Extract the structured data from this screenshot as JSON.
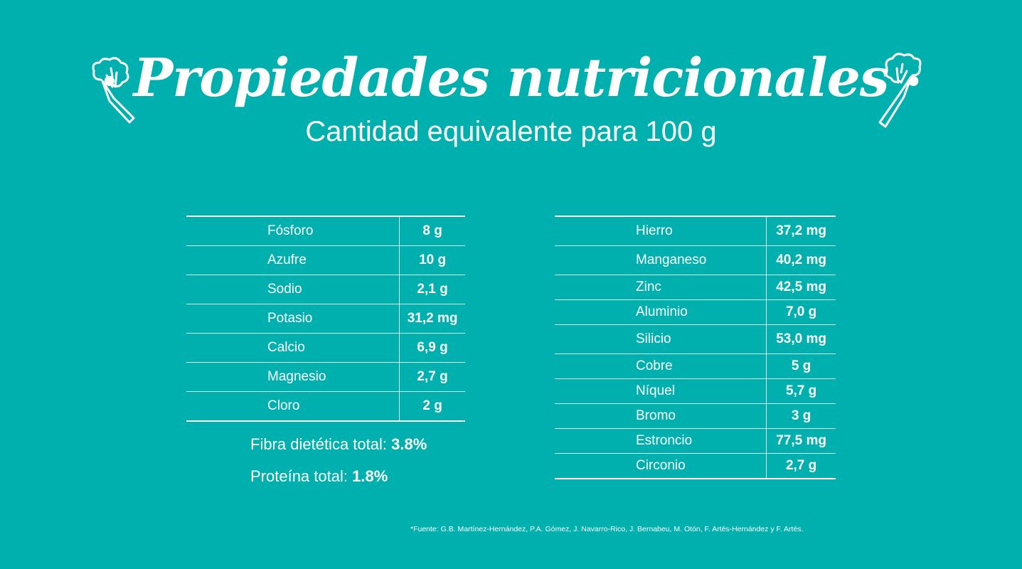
{
  "header": {
    "title": "Propiedades nutricionales",
    "subtitle": "Cantidad equivalente para 100 g"
  },
  "table_left": [
    {
      "name": "Fósforo",
      "value": "8 g"
    },
    {
      "name": "Azufre",
      "value": "10 g"
    },
    {
      "name": "Sodio",
      "value": "2,1 g"
    },
    {
      "name": "Potasio",
      "value": "31,2 mg"
    },
    {
      "name": "Calcio",
      "value": "6,9 g"
    },
    {
      "name": "Magnesio",
      "value": "2,7 g"
    },
    {
      "name": "Cloro",
      "value": "2 g"
    }
  ],
  "table_right": [
    {
      "name": "Hierro",
      "value": "37,2 mg"
    },
    {
      "name": "Manganeso",
      "value": "40,2 mg"
    },
    {
      "name": "Zinc",
      "value": "42,5 mg"
    },
    {
      "name": "Aluminio",
      "value": "7,0 g"
    },
    {
      "name": "Silicio",
      "value": "53,0 mg"
    },
    {
      "name": "Cobre",
      "value": "5 g"
    },
    {
      "name": "Níquel",
      "value": "5,7 g"
    },
    {
      "name": "Bromo",
      "value": "3 g"
    },
    {
      "name": "Estroncio",
      "value": "77,5 mg"
    },
    {
      "name": "Circonio",
      "value": "2,7 g"
    }
  ],
  "summary": {
    "fibra_label": "Fibra dietética total:",
    "fibra_value": "3.8%",
    "proteina_label": "Proteína total:",
    "proteina_value": "1.8%"
  },
  "source": "*Fuente:  G.B. Martínez-Hernández, P.A. Gómez, J. Navarro-Rico, J. Bernabeu, M. Otón, F. Artés-Hernández y F. Artés.",
  "colors": {
    "background": "#00B0AF",
    "text": "#ffffff"
  },
  "icons": [
    "broccoli-icon",
    "broccoli-icon"
  ]
}
